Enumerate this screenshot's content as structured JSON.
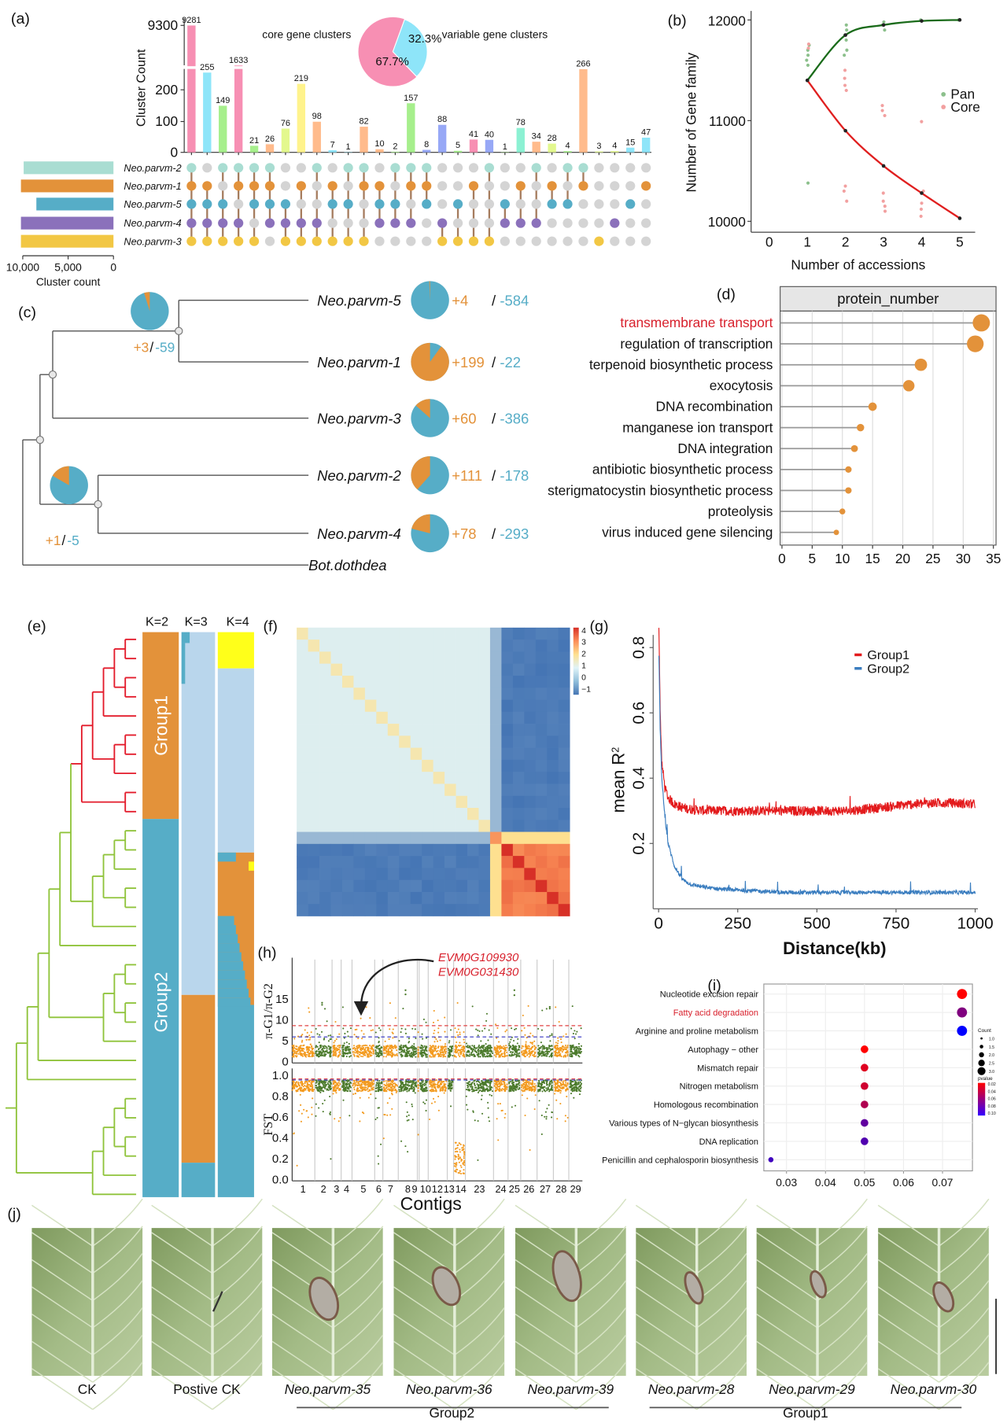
{
  "panel_labels": {
    "a": "(a)",
    "b": "(b)",
    "c": "(c)",
    "d": "(d)",
    "e": "(e)",
    "f": "(f)",
    "g": "(g)",
    "h": "(h)",
    "i": "(i)",
    "j": "(j)"
  },
  "chart_data": [
    {
      "panel": "a",
      "type": "bar",
      "ylabel": "Cluster Count",
      "yticks": [
        "0",
        "100",
        "200",
        "9300"
      ],
      "values": [
        9281,
        255,
        149,
        1633,
        21,
        26,
        76,
        219,
        98,
        7,
        1,
        82,
        10,
        2,
        157,
        8,
        88,
        5,
        41,
        40,
        1,
        78,
        34,
        28,
        4,
        266,
        3,
        4,
        15,
        47
      ],
      "bar_colors": [
        "#f78fb3",
        "#8ee5f9",
        "#a6ef8c",
        "#f78fb3",
        "#a6ef8c",
        "#ffbb8c",
        "#e3f88e",
        "#fff38c",
        "#ffbb8c",
        "#8ee5f9",
        "#8ee5f9",
        "#ffbb8c",
        "#ffbb8c",
        "#a6ef8c",
        "#a6ef8c",
        "#97a8f6",
        "#97a8f6",
        "#a6ef8c",
        "#f78fb3",
        "#97a8f6",
        "#a6ef8c",
        "#8cf1d3",
        "#ffbb8c",
        "#e3f88e",
        "#a6ef8c",
        "#ffbb8c",
        "#e3f88e",
        "#e3f88e",
        "#8ee5f9",
        "#8ee5f9"
      ],
      "sets": [
        {
          "name": "Neo.parvm-2",
          "size": 9900,
          "color": "#a9ddd2"
        },
        {
          "name": "Neo.parvm-1",
          "size": 10200,
          "color": "#e3923a"
        },
        {
          "name": "Neo.parvm-5",
          "size": 8500,
          "color": "#56adc7"
        },
        {
          "name": "Neo.parvm-4",
          "size": 10200,
          "color": "#8b71bb"
        },
        {
          "name": "Neo.parvm-3",
          "size": 10200,
          "color": "#f2c744"
        }
      ],
      "membership": [
        [
          1,
          1,
          1,
          1,
          1
        ],
        [
          0,
          1,
          1,
          1,
          1
        ],
        [
          1,
          0,
          1,
          1,
          1
        ],
        [
          1,
          1,
          0,
          1,
          1
        ],
        [
          1,
          1,
          1,
          0,
          1
        ],
        [
          1,
          1,
          1,
          1,
          0
        ],
        [
          0,
          0,
          1,
          1,
          1
        ],
        [
          0,
          1,
          0,
          1,
          1
        ],
        [
          1,
          0,
          0,
          1,
          1
        ],
        [
          0,
          1,
          1,
          0,
          1
        ],
        [
          1,
          0,
          1,
          0,
          1
        ],
        [
          1,
          1,
          0,
          0,
          1
        ],
        [
          0,
          1,
          1,
          1,
          0
        ],
        [
          1,
          0,
          1,
          1,
          0
        ],
        [
          1,
          1,
          0,
          1,
          0
        ],
        [
          1,
          1,
          1,
          0,
          0
        ],
        [
          0,
          0,
          0,
          1,
          1
        ],
        [
          0,
          0,
          1,
          0,
          1
        ],
        [
          0,
          1,
          0,
          0,
          1
        ],
        [
          1,
          0,
          0,
          0,
          1
        ],
        [
          0,
          0,
          1,
          1,
          0
        ],
        [
          0,
          1,
          0,
          1,
          0
        ],
        [
          1,
          0,
          0,
          1,
          0
        ],
        [
          0,
          1,
          1,
          0,
          0
        ],
        [
          1,
          0,
          1,
          0,
          0
        ],
        [
          1,
          1,
          0,
          0,
          0
        ],
        [
          0,
          0,
          0,
          0,
          1
        ],
        [
          0,
          0,
          0,
          1,
          0
        ],
        [
          0,
          0,
          1,
          0,
          0
        ],
        [
          0,
          1,
          0,
          0,
          0
        ]
      ],
      "set_axis_ticks": [
        "10,000",
        "5,000",
        "0"
      ],
      "set_axis_label": "Cluster count",
      "pie": {
        "type": "pie",
        "slices": [
          {
            "label": "core gene clusters",
            "pct_label": "67.7%",
            "value": 67.7,
            "color": "#f78fb3"
          },
          {
            "label": "variable gene clusters",
            "pct_label": "32.3%",
            "value": 32.3,
            "color": "#8ee5f9"
          }
        ]
      }
    },
    {
      "panel": "b",
      "type": "scatter",
      "xlabel": "Number of accessions",
      "ylabel": "Number of Gene family",
      "xticks": [
        "0",
        "1",
        "2",
        "3",
        "4",
        "5"
      ],
      "yticks": [
        "10000",
        "11000",
        "12000"
      ],
      "series": [
        {
          "name": "Pan",
          "color": "#1a6b1a",
          "point_color": "#8cc08c",
          "curve": [
            [
              1,
              11400
            ],
            [
              2,
              11850
            ],
            [
              3,
              11950
            ],
            [
              4,
              11990
            ],
            [
              5,
              12000
            ]
          ],
          "points": [
            [
              1,
              11550
            ],
            [
              1,
              11600
            ],
            [
              1,
              11700
            ],
            [
              1,
              11750
            ],
            [
              1,
              11650
            ],
            [
              1,
              10380
            ],
            [
              2,
              11650
            ],
            [
              2,
              11700
            ],
            [
              2,
              11800
            ],
            [
              2,
              11900
            ],
            [
              2,
              11950
            ],
            [
              2,
              11850
            ],
            [
              3,
              11900
            ],
            [
              3,
              11950
            ],
            [
              3,
              11980
            ],
            [
              4,
              12000
            ],
            [
              5,
              12000
            ]
          ]
        },
        {
          "name": "Core",
          "color": "#e01f1f",
          "point_color": "#f2a0a0",
          "curve": [
            [
              1,
              11400
            ],
            [
              2,
              10900
            ],
            [
              3,
              10550
            ],
            [
              4,
              10280
            ],
            [
              5,
              10030
            ]
          ],
          "points": [
            [
              1,
              11720
            ],
            [
              1,
              11760
            ],
            [
              2,
              10200
            ],
            [
              2,
              10300
            ],
            [
              2,
              10350
            ],
            [
              2,
              11300
            ],
            [
              2,
              11350
            ],
            [
              2,
              11420
            ],
            [
              2,
              11500
            ],
            [
              3,
              10100
            ],
            [
              3,
              10150
            ],
            [
              3,
              10200
            ],
            [
              3,
              10280
            ],
            [
              3,
              11050
            ],
            [
              3,
              11100
            ],
            [
              3,
              11150
            ],
            [
              4,
              10050
            ],
            [
              4,
              10120
            ],
            [
              4,
              10180
            ],
            [
              4,
              10300
            ],
            [
              4,
              10990
            ]
          ]
        }
      ]
    },
    {
      "panel": "c",
      "type": "tree",
      "tips": [
        {
          "name": "Neo.parvm-5",
          "gain": "+4",
          "loss": "-584",
          "gain_n": 4,
          "loss_n": 584
        },
        {
          "name": "Neo.parvm-1",
          "gain": "+199",
          "loss": "-22",
          "gain_n": 199,
          "loss_n": 22
        },
        {
          "name": "Neo.parvm-3",
          "gain": "+60",
          "loss": "-386",
          "gain_n": 60,
          "loss_n": 386
        },
        {
          "name": "Neo.parvm-2",
          "gain": "+111",
          "loss": "-178",
          "gain_n": 111,
          "loss_n": 178
        },
        {
          "name": "Neo.parvm-4",
          "gain": "+78",
          "loss": "-293",
          "gain_n": 78,
          "loss_n": 293
        }
      ],
      "outgroup": "Bot.dothdea",
      "nodes": [
        {
          "gain": "+3",
          "loss": "-59",
          "gain_n": 3,
          "loss_n": 59
        },
        {
          "gain": "+1",
          "loss": "-5",
          "gain_n": 1,
          "loss_n": 5
        }
      ],
      "gain_color": "#e3923a",
      "loss_color": "#56adc7"
    },
    {
      "panel": "d",
      "type": "lollipop",
      "title": "protein_number",
      "categories": [
        "transmembrane transport",
        "regulation of transcription",
        "terpenoid biosynthetic process",
        "exocytosis",
        "DNA recombination",
        "manganese ion transport",
        "DNA integration",
        "antibiotic biosynthetic process",
        "sterigmatocystin biosynthetic process",
        "proteolysis",
        "virus induced gene silencing"
      ],
      "values": [
        33,
        32,
        23,
        21,
        15,
        13,
        12,
        11,
        11,
        10,
        9
      ],
      "highlight": "transmembrane transport",
      "xticks": [
        "0",
        "5",
        "10",
        "15",
        "20",
        "25",
        "30",
        "35"
      ],
      "color": "#e3923a"
    },
    {
      "panel": "e",
      "type": "structure",
      "k_labels": [
        "K=2",
        "K=3",
        "K=4"
      ],
      "groups": [
        {
          "label": "Group1",
          "color": "#e31a2a"
        },
        {
          "label": "Group2",
          "color": "#8fc33a"
        }
      ]
    },
    {
      "panel": "f",
      "type": "heatmap",
      "colorbar_ticks": [
        "4",
        "3",
        "2",
        "1",
        "0",
        "−1"
      ]
    },
    {
      "panel": "g",
      "type": "line",
      "xlabel": "Distance(kb)",
      "ylabel": "mean R",
      "ylabel_sup": "2",
      "xticks": [
        "0",
        "250",
        "500",
        "750",
        "1000"
      ],
      "yticks": [
        "0.2",
        "0.4",
        "0.6",
        "0.8"
      ],
      "x": [
        1,
        5,
        10,
        20,
        30,
        50,
        75,
        100,
        150,
        200,
        300,
        400,
        500,
        600,
        700,
        800,
        900,
        1000
      ],
      "series": [
        {
          "name": "Group1",
          "color": "#e31a1c",
          "y": [
            0.87,
            0.6,
            0.45,
            0.37,
            0.34,
            0.32,
            0.31,
            0.305,
            0.3,
            0.3,
            0.3,
            0.3,
            0.3,
            0.3,
            0.31,
            0.32,
            0.325,
            0.32
          ]
        },
        {
          "name": "Group2",
          "color": "#3a7dbf",
          "y": [
            0.78,
            0.55,
            0.4,
            0.28,
            0.2,
            0.13,
            0.09,
            0.075,
            0.065,
            0.06,
            0.055,
            0.05,
            0.05,
            0.05,
            0.05,
            0.05,
            0.05,
            0.05
          ]
        }
      ]
    },
    {
      "panel": "h",
      "type": "scatter",
      "ylabel_top": "π-G1/π-G2",
      "ylabel_bottom": "FST",
      "xlabel": "Contigs",
      "contigs": [
        "1",
        "2",
        "3",
        "4",
        "5",
        "6",
        "7",
        "8",
        "9",
        "10",
        "12",
        "13",
        "14",
        "23",
        "24",
        "25",
        "26",
        "27",
        "28",
        "29"
      ],
      "yticks_top": [
        "0",
        "5",
        "10",
        "15"
      ],
      "yticks_bottom": [
        "0.0",
        "0.2",
        "0.4",
        "0.6",
        "0.8",
        "1.0"
      ],
      "thresholds_top": [
        {
          "value": 8.5,
          "color": "#e04040"
        },
        {
          "value": 5.8,
          "color": "#3030c0"
        }
      ],
      "thresholds_bottom": [
        {
          "value": 0.96,
          "color": "#e04040"
        },
        {
          "value": 0.95,
          "color": "#3030c0"
        }
      ],
      "colors": [
        "#f39a1e",
        "#4b7a2b"
      ],
      "annotation": [
        "EVM0G109930",
        "EVM0G031430"
      ],
      "annotation_color": "#d8202c"
    },
    {
      "panel": "i",
      "type": "scatter",
      "categories": [
        "Nucleotide excision repair",
        "Fatty acid degradation",
        "Arginine and proline metabolism",
        "Autophagy − other",
        "Mismatch repair",
        "Nitrogen metabolism",
        "Homologous recombination",
        "Various types of N−glycan biosynthesis",
        "DNA replication",
        "Penicillin and cephalosporin biosynthesis"
      ],
      "x": [
        0.075,
        0.075,
        0.075,
        0.05,
        0.05,
        0.05,
        0.05,
        0.05,
        0.05,
        0.026
      ],
      "count": [
        3,
        3,
        3,
        2,
        2,
        2,
        2,
        2,
        2,
        1
      ],
      "pvalue": [
        0.02,
        0.06,
        0.1,
        0.02,
        0.03,
        0.035,
        0.045,
        0.07,
        0.075,
        0.08
      ],
      "highlight": "Fatty acid degradation",
      "xticks": [
        "0.03",
        "0.04",
        "0.05",
        "0.06",
        "0.07"
      ],
      "legend_count_title": "Count",
      "legend_count": [
        "1.0",
        "1.5",
        "2.0",
        "2.5",
        "3.0"
      ],
      "legend_pvalue_title": "pvalue",
      "legend_pvalue": [
        "0.02",
        "0.04",
        "0.06",
        "0.08",
        "0.10"
      ],
      "pvalue_colors": [
        "#ff0000",
        "#0000ff"
      ]
    }
  ],
  "panel_j": {
    "samples": [
      {
        "label": "CK",
        "italic": false,
        "lesion": 0
      },
      {
        "label": "Postive CK",
        "italic": false,
        "lesion": 0
      },
      {
        "label": "Neo.parvm-35",
        "italic": true,
        "lesion": 1
      },
      {
        "label": "Neo.parvm-36",
        "italic": true,
        "lesion": 1
      },
      {
        "label": "Neo.parvm-39",
        "italic": true,
        "lesion": 1
      },
      {
        "label": "Neo.parvm-28",
        "italic": true,
        "lesion": 1
      },
      {
        "label": "Neo.parvm-29",
        "italic": true,
        "lesion": 1
      },
      {
        "label": "Neo.parvm-30",
        "italic": true,
        "lesion": 1
      }
    ],
    "groups": [
      {
        "label": "Group2"
      },
      {
        "label": "Group1"
      }
    ]
  }
}
